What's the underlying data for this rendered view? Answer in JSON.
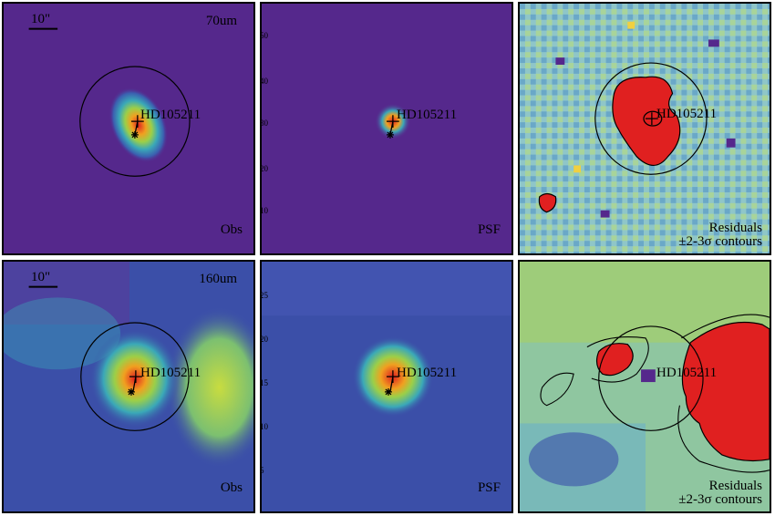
{
  "rows": [
    {
      "scale_bar": "10\"",
      "band": "70um",
      "panels": [
        {
          "label": "Obs"
        },
        {
          "label": "PSF"
        },
        {
          "label": "Residuals",
          "contours": "±2-3σ contours"
        }
      ]
    },
    {
      "scale_bar": "10\"",
      "band": "160um",
      "panels": [
        {
          "label": "Obs"
        },
        {
          "label": "PSF"
        },
        {
          "label": "Residuals",
          "contours": "±2-3σ contours"
        }
      ]
    }
  ],
  "source_name": "HD105211",
  "ticks": {
    "top_psf": [
      "50",
      "40",
      "30",
      "20",
      "10"
    ],
    "bottom_psf": [
      "25",
      "20",
      "15",
      "10",
      "5"
    ]
  },
  "colors": {
    "background_70": "#55288c",
    "background_160": "#3b4fa8",
    "peak": "#e02020",
    "green": "#9ccf48",
    "residual_bg": "#8fc6c8"
  }
}
